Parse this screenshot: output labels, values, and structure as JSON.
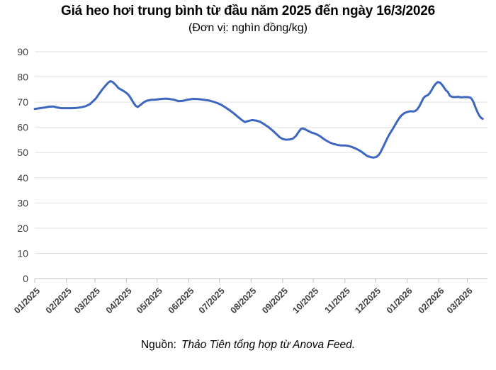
{
  "chart_data": {
    "type": "line",
    "title": "Giá heo hơi trung bình từ đầu năm 2025 đến ngày 16/3/2026",
    "subtitle": "(Đơn vị: nghìn đồng/kg)",
    "unit": "nghìn đồng/kg",
    "grid": "horizontal",
    "legend": "none",
    "ylim": [
      0,
      90
    ],
    "y_ticks": [
      0,
      10,
      20,
      30,
      40,
      50,
      60,
      70,
      80,
      90
    ],
    "xlim_days": [
      0,
      444
    ],
    "x_unit": "days since 2025-01-01",
    "x_ticks": [
      {
        "day": 0,
        "label": "01/2025"
      },
      {
        "day": 31,
        "label": "02/2025"
      },
      {
        "day": 59,
        "label": "03/2025"
      },
      {
        "day": 90,
        "label": "04/2025"
      },
      {
        "day": 120,
        "label": "05/2025"
      },
      {
        "day": 151,
        "label": "06/2025"
      },
      {
        "day": 181,
        "label": "07/2025"
      },
      {
        "day": 212,
        "label": "08/2025"
      },
      {
        "day": 243,
        "label": "09/2025"
      },
      {
        "day": 273,
        "label": "10/2025"
      },
      {
        "day": 304,
        "label": "11/2025"
      },
      {
        "day": 334,
        "label": "12/2025"
      },
      {
        "day": 365,
        "label": "01/2026"
      },
      {
        "day": 396,
        "label": "02/2026"
      },
      {
        "day": 424,
        "label": "03/2026"
      }
    ],
    "series": [
      {
        "name": "Giá heo hơi trung bình (nghìn đồng/kg)",
        "color": "#3d66c1",
        "points": [
          [
            0,
            67.3
          ],
          [
            5,
            67.6
          ],
          [
            10,
            67.9
          ],
          [
            14,
            68.2
          ],
          [
            18,
            68.3
          ],
          [
            22,
            67.9
          ],
          [
            26,
            67.6
          ],
          [
            31,
            67.6
          ],
          [
            36,
            67.6
          ],
          [
            41,
            67.7
          ],
          [
            46,
            68.0
          ],
          [
            50,
            68.4
          ],
          [
            54,
            69.2
          ],
          [
            57,
            70.3
          ],
          [
            60,
            71.5
          ],
          [
            63,
            73.2
          ],
          [
            66,
            74.9
          ],
          [
            69,
            76.4
          ],
          [
            72,
            77.7
          ],
          [
            74,
            78.3
          ],
          [
            76,
            78.1
          ],
          [
            79,
            77.0
          ],
          [
            82,
            75.6
          ],
          [
            85,
            74.9
          ],
          [
            88,
            74.2
          ],
          [
            91,
            73.3
          ],
          [
            93,
            72.3
          ],
          [
            95,
            71.0
          ],
          [
            97,
            69.6
          ],
          [
            99,
            68.5
          ],
          [
            101,
            68.1
          ],
          [
            104,
            69.0
          ],
          [
            107,
            70.0
          ],
          [
            110,
            70.6
          ],
          [
            114,
            70.9
          ],
          [
            118,
            71.0
          ],
          [
            123,
            71.2
          ],
          [
            128,
            71.4
          ],
          [
            133,
            71.2
          ],
          [
            137,
            70.9
          ],
          [
            141,
            70.4
          ],
          [
            145,
            70.5
          ],
          [
            150,
            71.0
          ],
          [
            155,
            71.3
          ],
          [
            160,
            71.2
          ],
          [
            165,
            71.0
          ],
          [
            170,
            70.7
          ],
          [
            175,
            70.2
          ],
          [
            179,
            69.6
          ],
          [
            183,
            68.9
          ],
          [
            187,
            67.9
          ],
          [
            191,
            66.8
          ],
          [
            195,
            65.6
          ],
          [
            199,
            64.2
          ],
          [
            203,
            62.9
          ],
          [
            206,
            62.1
          ],
          [
            209,
            62.5
          ],
          [
            213,
            62.9
          ],
          [
            217,
            62.7
          ],
          [
            221,
            62.2
          ],
          [
            225,
            61.2
          ],
          [
            229,
            60.1
          ],
          [
            233,
            58.8
          ],
          [
            237,
            57.3
          ],
          [
            240,
            56.1
          ],
          [
            243,
            55.4
          ],
          [
            246,
            55.1
          ],
          [
            250,
            55.2
          ],
          [
            253,
            55.5
          ],
          [
            256,
            56.6
          ],
          [
            259,
            58.4
          ],
          [
            261,
            59.4
          ],
          [
            263,
            59.6
          ],
          [
            265,
            59.2
          ],
          [
            268,
            58.6
          ],
          [
            271,
            58.0
          ],
          [
            274,
            57.6
          ],
          [
            277,
            57.1
          ],
          [
            280,
            56.4
          ],
          [
            283,
            55.5
          ],
          [
            286,
            54.7
          ],
          [
            289,
            54.0
          ],
          [
            293,
            53.4
          ],
          [
            297,
            53.0
          ],
          [
            301,
            52.8
          ],
          [
            305,
            52.8
          ],
          [
            308,
            52.6
          ],
          [
            311,
            52.2
          ],
          [
            314,
            51.7
          ],
          [
            317,
            51.1
          ],
          [
            320,
            50.4
          ],
          [
            323,
            49.5
          ],
          [
            326,
            48.6
          ],
          [
            329,
            48.2
          ],
          [
            332,
            48.0
          ],
          [
            335,
            48.3
          ],
          [
            337,
            49.0
          ],
          [
            339,
            50.2
          ],
          [
            341,
            51.8
          ],
          [
            343,
            53.5
          ],
          [
            345,
            55.2
          ],
          [
            347,
            56.8
          ],
          [
            349,
            58.2
          ],
          [
            351,
            59.4
          ],
          [
            353,
            60.8
          ],
          [
            355,
            62.2
          ],
          [
            357,
            63.5
          ],
          [
            359,
            64.6
          ],
          [
            362,
            65.6
          ],
          [
            365,
            66.1
          ],
          [
            368,
            66.4
          ],
          [
            371,
            66.3
          ],
          [
            373,
            66.5
          ],
          [
            375,
            67.2
          ],
          [
            377,
            68.4
          ],
          [
            379,
            70.0
          ],
          [
            381,
            71.6
          ],
          [
            383,
            72.4
          ],
          [
            385,
            72.7
          ],
          [
            387,
            73.5
          ],
          [
            389,
            74.8
          ],
          [
            391,
            76.2
          ],
          [
            393,
            77.3
          ],
          [
            395,
            78.0
          ],
          [
            397,
            77.8
          ],
          [
            399,
            77.0
          ],
          [
            401,
            75.9
          ],
          [
            403,
            74.7
          ],
          [
            405,
            74.0
          ],
          [
            406,
            73.2
          ],
          [
            407,
            72.5
          ],
          [
            409,
            72.1
          ],
          [
            412,
            72.0
          ],
          [
            415,
            72.1
          ],
          [
            418,
            71.9
          ],
          [
            421,
            72.0
          ],
          [
            424,
            72.0
          ],
          [
            427,
            71.8
          ],
          [
            428,
            71.4
          ],
          [
            429,
            70.8
          ],
          [
            430,
            70.0
          ],
          [
            431,
            69.0
          ],
          [
            432,
            67.9
          ],
          [
            433,
            66.9
          ],
          [
            434,
            66.0
          ],
          [
            435,
            65.2
          ],
          [
            436,
            64.5
          ],
          [
            437,
            64.0
          ],
          [
            438,
            63.6
          ],
          [
            439,
            63.4
          ]
        ]
      }
    ]
  },
  "source": {
    "prefix": "Nguồn:",
    "attribution": "Thảo Tiên tổng hợp từ Anova Feed."
  },
  "colors": {
    "line": "#3d66c1",
    "grid": "#e2e2e2",
    "axis": "#c0c0c0",
    "axis_label": "#3f3f3f",
    "text": "#000000",
    "background": "#ffffff"
  }
}
